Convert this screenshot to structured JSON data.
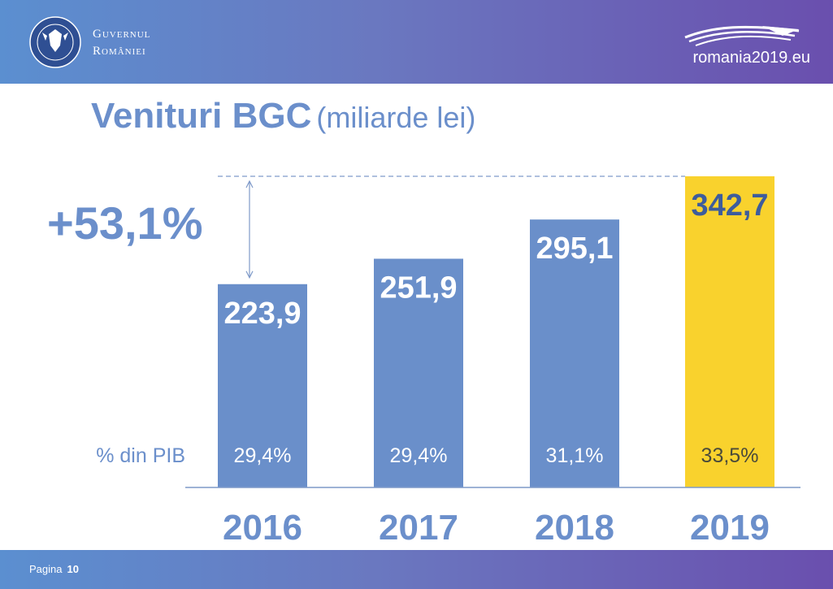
{
  "header": {
    "gov_line1": "Guvernul",
    "gov_line2": "României",
    "site": "romania2019.eu",
    "crest_icon": "coat-of-arms-icon",
    "logo_icon": "wave-logo-icon"
  },
  "title": {
    "main": "Venituri BGC",
    "sub": "(miliarde lei)"
  },
  "footer": {
    "page_label": "Pagina",
    "page_number": "10"
  },
  "colors": {
    "bar": "#6a8fca",
    "highlight_bar": "#f9d22d",
    "text_blue": "#6b8fcb",
    "highlight_text": "#3d5c9c",
    "axis": "#7f9ac9"
  },
  "chart_data": {
    "type": "bar",
    "title": "Venituri BGC (miliarde lei)",
    "categories": [
      "2016",
      "2017",
      "2018",
      "2019"
    ],
    "values": [
      223.9,
      251.9,
      295.1,
      342.7
    ],
    "value_labels": [
      "223,9",
      "251,9",
      "295,1",
      "342,7"
    ],
    "gdp_share_label": "% din PIB",
    "gdp_share": [
      "29,4%",
      "29,4%",
      "31,1%",
      "33,5%"
    ],
    "highlight_index": 3,
    "growth_label": "+53,1%",
    "growth_from_index": 0,
    "growth_to_index": 3
  }
}
